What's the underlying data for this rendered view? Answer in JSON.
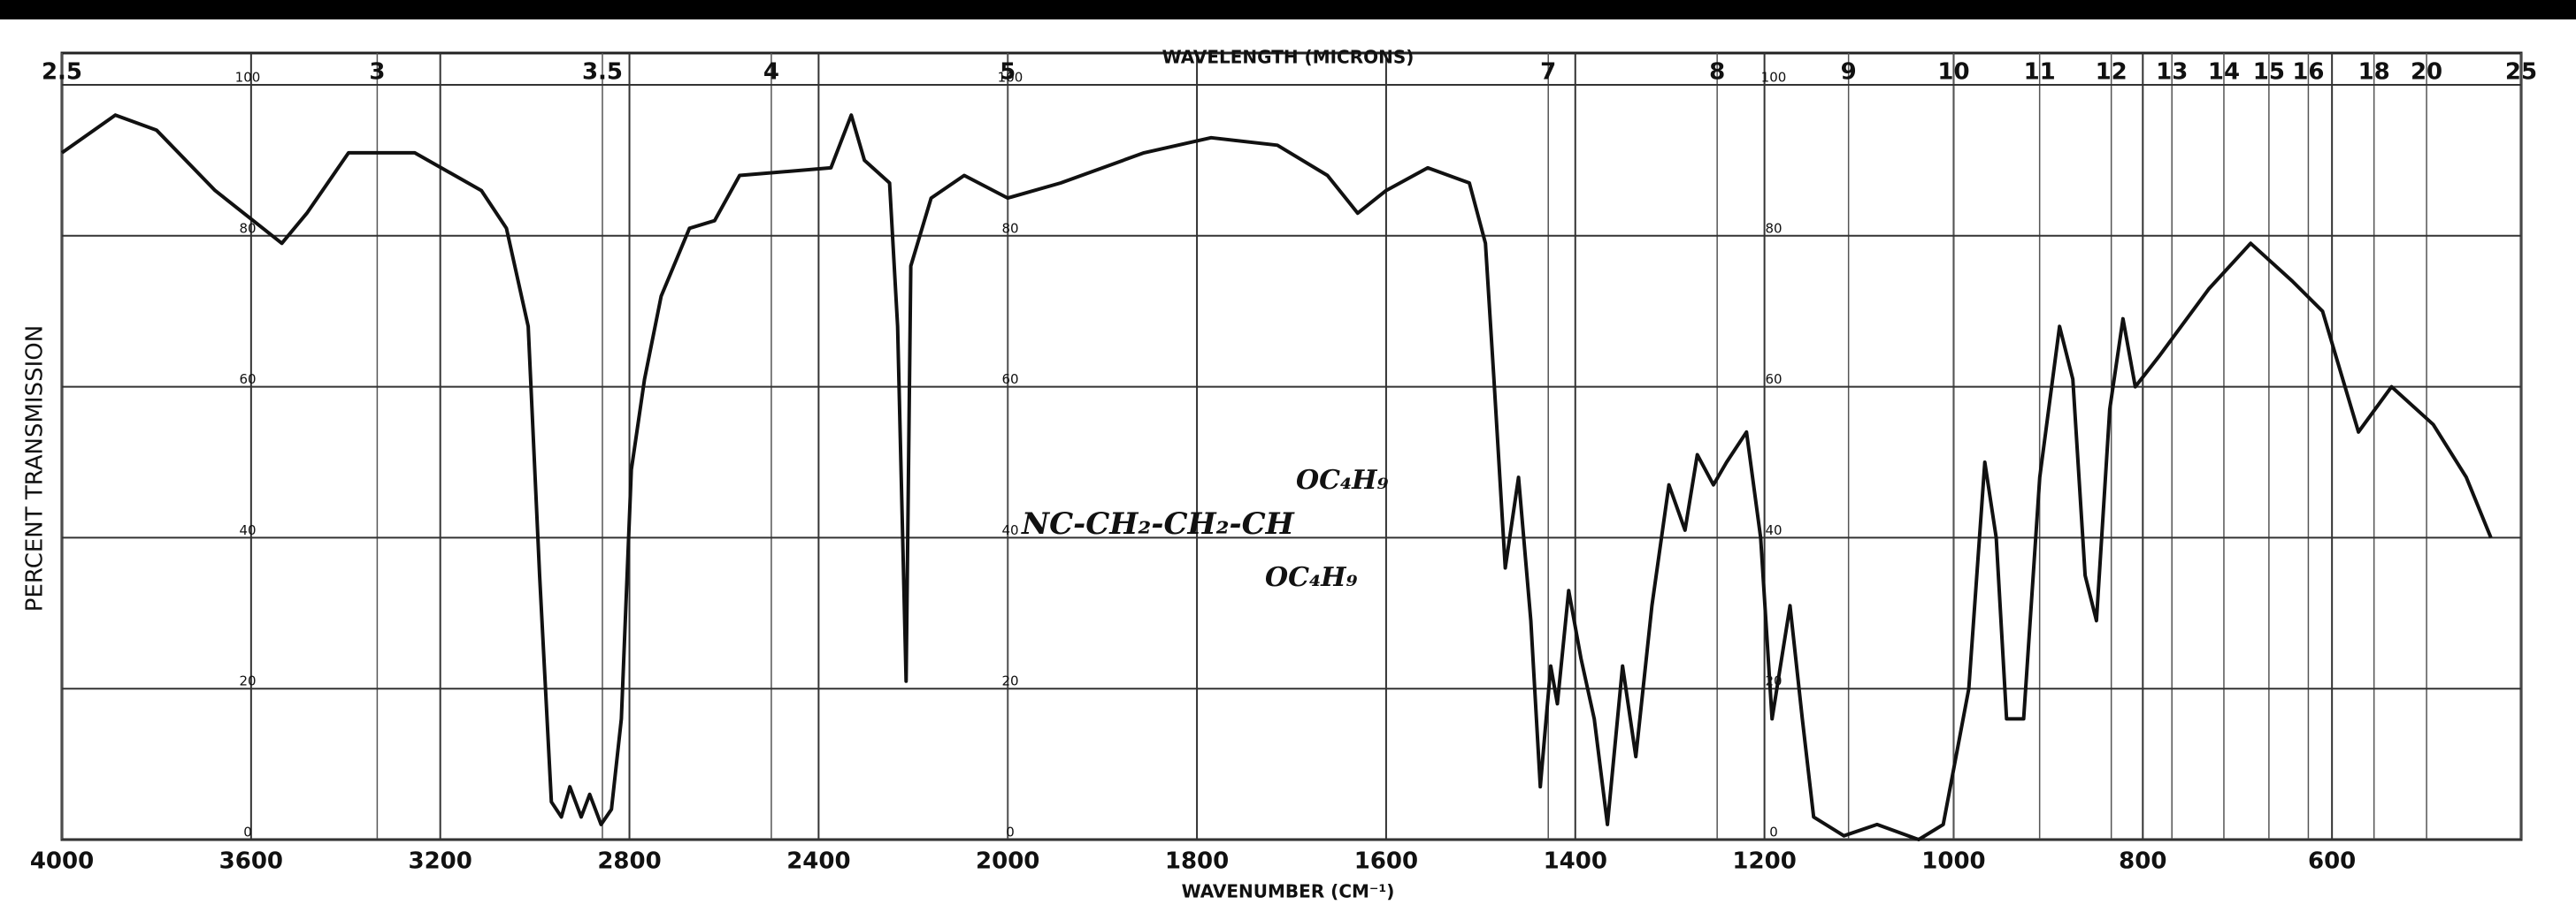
{
  "chart_data": {
    "type": "line",
    "title": "WAVELENGTH (MICRONS)",
    "x_label": "WAVENUMBER (CM⁻¹)",
    "y_label": "PERCENT TRANSMISSION",
    "annotations": [
      "NC-CH₂-CH₂-CH",
      "OC₄H₉",
      "OC₄H₉"
    ],
    "xlim": [
      4000,
      400
    ],
    "xticks": [
      4000,
      3600,
      3200,
      2800,
      2400,
      2000,
      1800,
      1600,
      1400,
      1200,
      1000,
      800,
      600
    ],
    "x2ticks": [
      2.5,
      3,
      3.5,
      4,
      5,
      7,
      8,
      9,
      10,
      11,
      12,
      13,
      14,
      15,
      16,
      18,
      20,
      25
    ],
    "ylim": [
      0,
      100
    ],
    "yticks": [
      0,
      20,
      40,
      60,
      80,
      100
    ],
    "grid": true,
    "series": [
      {
        "color": "#111111",
        "x": [
          4000,
          3887,
          3800,
          3676,
          3535,
          3482,
          3394,
          3254,
          3113,
          3060,
          3014,
          2990,
          2965,
          2944,
          2926,
          2902,
          2884,
          2860,
          2838,
          2817,
          2796,
          2768,
          2733,
          2673,
          2620,
          2567,
          2374,
          2331,
          2303,
          2250,
          2233,
          2215,
          2205,
          2162,
          2092,
          2000,
          1944,
          1856,
          1785,
          1715,
          1662,
          1630,
          1600,
          1556,
          1512,
          1495,
          1486,
          1474,
          1460,
          1447,
          1437,
          1426,
          1419,
          1407,
          1394,
          1380,
          1366,
          1350,
          1336,
          1319,
          1301,
          1284,
          1271,
          1254,
          1240,
          1219,
          1204,
          1192,
          1173,
          1160,
          1148,
          1116,
          1081,
          1037,
          1011,
          984,
          967,
          955,
          944,
          926,
          909,
          888,
          874,
          861,
          849,
          835,
          821,
          808,
          783,
          730,
          686,
          642,
          610,
          572,
          537,
          493,
          458,
          432
        ],
        "values": [
          91,
          96,
          94,
          86,
          79,
          83,
          91,
          91,
          86,
          81,
          68,
          35,
          5,
          3,
          7,
          3,
          6,
          2,
          4,
          16,
          49,
          61,
          72,
          81,
          82,
          88,
          89,
          96,
          90,
          87,
          68,
          21,
          76,
          85,
          88,
          85,
          87,
          91,
          93,
          92,
          88,
          83,
          86,
          89,
          87,
          79,
          61,
          36,
          48,
          29,
          7,
          23,
          18,
          33,
          24,
          16,
          2,
          23,
          11,
          31,
          47,
          41,
          51,
          47,
          50,
          54,
          40,
          16,
          31,
          16,
          3,
          0.5,
          2,
          0,
          2,
          20,
          50,
          40,
          16,
          16,
          48,
          68,
          61,
          35,
          29,
          57,
          69,
          60,
          64,
          73,
          79,
          74,
          70,
          54,
          60,
          55,
          48,
          40
        ]
      }
    ]
  }
}
